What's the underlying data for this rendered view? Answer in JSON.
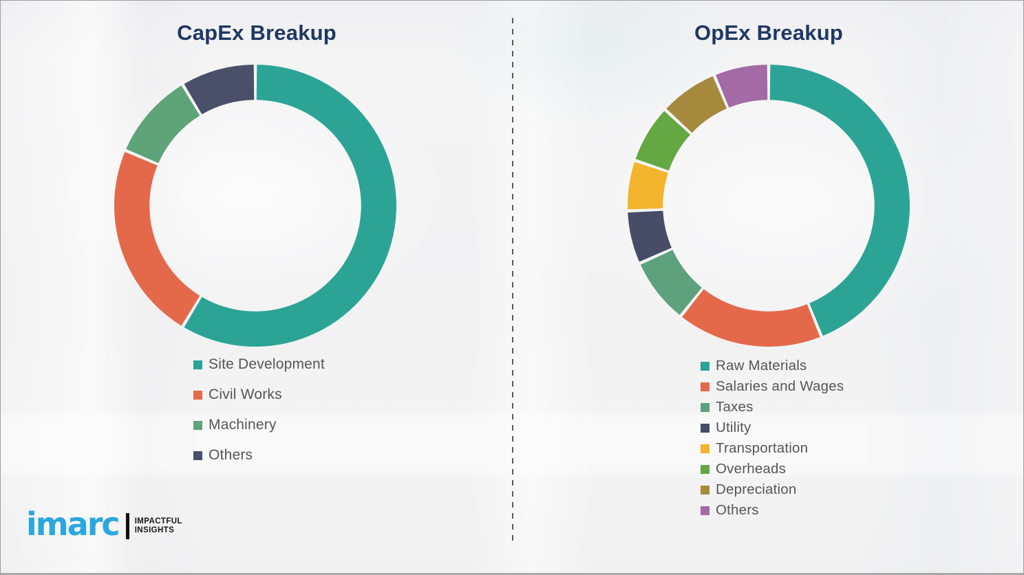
{
  "chart_data": [
    {
      "type": "pie",
      "subtype": "donut",
      "title": "CapEx Breakup",
      "labels": [
        "Site Development",
        "Civil Works",
        "Machinery",
        "Others"
      ],
      "values": [
        58.6,
        22.8,
        10.0,
        8.6
      ],
      "unit": "percent",
      "colors": [
        "#2BA496",
        "#E4694A",
        "#5FA378",
        "#4A5069"
      ],
      "start_angle_deg": 0,
      "direction": "clockwise",
      "donut_hole_ratio": 0.75,
      "legend_position": "below-left",
      "data_labels_shown": false
    },
    {
      "type": "pie",
      "subtype": "donut",
      "title": "OpEx Breakup",
      "labels": [
        "Raw Materials",
        "Salaries and Wages",
        "Taxes",
        "Utility",
        "Transportation",
        "Overheads",
        "Depreciation",
        "Others"
      ],
      "values": [
        43.9,
        16.8,
        7.6,
        6.1,
        5.8,
        6.7,
        6.8,
        6.3
      ],
      "unit": "percent",
      "colors": [
        "#2BA496",
        "#E4694A",
        "#5DA27C",
        "#474D66",
        "#F2B52D",
        "#64A843",
        "#A58A3E",
        "#A36AA6"
      ],
      "start_angle_deg": 0,
      "direction": "clockwise",
      "donut_hole_ratio": 0.75,
      "legend_position": "below-left",
      "data_labels_shown": false
    }
  ],
  "logo": {
    "brand": "imarc",
    "tagline_line1": "IMPACTFUL",
    "tagline_line2": "INSIGHTS",
    "brand_color": "#2BA7E0"
  },
  "styles": {
    "title_color": "#1F3864",
    "legend_text_color": "#555555",
    "divider_color": "#585858"
  }
}
